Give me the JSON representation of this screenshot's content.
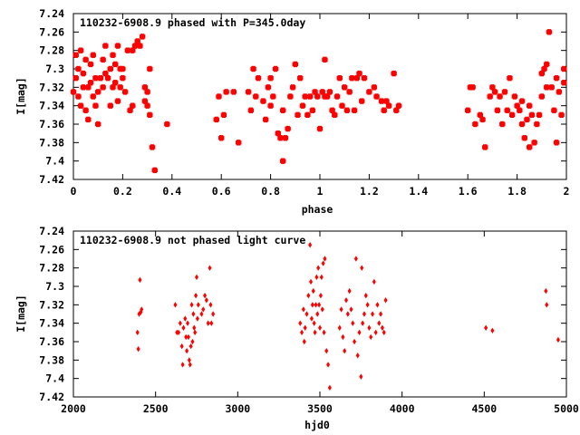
{
  "chart_data": [
    {
      "type": "scatter",
      "title": "110232-6908.9 phased with P=345.0day",
      "xlabel": "phase",
      "ylabel": "I[mag]",
      "xlim": [
        0,
        2
      ],
      "ylim": [
        7.24,
        7.42
      ],
      "y_inverted": true,
      "grid": false,
      "xticks": [
        "0",
        "0.2",
        "0.4",
        "0.6",
        "0.8",
        "1",
        "1.2",
        "1.4",
        "1.6",
        "1.8",
        "2"
      ],
      "yticks": [
        "7.24",
        "7.26",
        "7.28",
        "7.3",
        "7.32",
        "7.34",
        "7.36",
        "7.38",
        "7.4",
        "7.42"
      ],
      "marker": "filled-star",
      "color": "#ff0000",
      "points": [
        [
          0.0,
          7.325
        ],
        [
          0.01,
          7.31
        ],
        [
          0.01,
          7.285
        ],
        [
          0.02,
          7.33
        ],
        [
          0.02,
          7.3
        ],
        [
          0.03,
          7.28
        ],
        [
          0.03,
          7.34
        ],
        [
          0.04,
          7.32
        ],
        [
          0.04,
          7.305
        ],
        [
          0.05,
          7.345
        ],
        [
          0.05,
          7.29
        ],
        [
          0.06,
          7.32
        ],
        [
          0.06,
          7.355
        ],
        [
          0.07,
          7.315
        ],
        [
          0.07,
          7.295
        ],
        [
          0.08,
          7.285
        ],
        [
          0.08,
          7.33
        ],
        [
          0.09,
          7.31
        ],
        [
          0.09,
          7.34
        ],
        [
          0.1,
          7.325
        ],
        [
          0.1,
          7.36
        ],
        [
          0.11,
          7.31
        ],
        [
          0.12,
          7.29
        ],
        [
          0.12,
          7.32
        ],
        [
          0.13,
          7.275
        ],
        [
          0.13,
          7.305
        ],
        [
          0.14,
          7.31
        ],
        [
          0.15,
          7.3
        ],
        [
          0.15,
          7.34
        ],
        [
          0.16,
          7.285
        ],
        [
          0.16,
          7.32
        ],
        [
          0.17,
          7.315
        ],
        [
          0.17,
          7.295
        ],
        [
          0.18,
          7.275
        ],
        [
          0.18,
          7.335
        ],
        [
          0.19,
          7.3
        ],
        [
          0.19,
          7.32
        ],
        [
          0.2,
          7.3
        ],
        [
          0.2,
          7.31
        ],
        [
          0.21,
          7.325
        ],
        [
          0.22,
          7.28
        ],
        [
          0.23,
          7.345
        ],
        [
          0.24,
          7.28
        ],
        [
          0.24,
          7.34
        ],
        [
          0.25,
          7.275
        ],
        [
          0.26,
          7.27
        ],
        [
          0.27,
          7.275
        ],
        [
          0.28,
          7.265
        ],
        [
          0.29,
          7.32
        ],
        [
          0.29,
          7.335
        ],
        [
          0.3,
          7.325
        ],
        [
          0.3,
          7.34
        ],
        [
          0.31,
          7.3
        ],
        [
          0.31,
          7.35
        ],
        [
          0.32,
          7.385
        ],
        [
          0.33,
          7.41
        ],
        [
          0.38,
          7.36
        ],
        [
          0.58,
          7.355
        ],
        [
          0.59,
          7.33
        ],
        [
          0.6,
          7.375
        ],
        [
          0.61,
          7.35
        ],
        [
          0.62,
          7.325
        ],
        [
          0.65,
          7.325
        ],
        [
          0.67,
          7.38
        ],
        [
          0.71,
          7.325
        ],
        [
          0.72,
          7.345
        ],
        [
          0.73,
          7.3
        ],
        [
          0.74,
          7.33
        ],
        [
          0.75,
          7.31
        ],
        [
          0.77,
          7.335
        ],
        [
          0.78,
          7.355
        ],
        [
          0.79,
          7.32
        ],
        [
          0.8,
          7.31
        ],
        [
          0.8,
          7.34
        ],
        [
          0.81,
          7.33
        ],
        [
          0.82,
          7.3
        ],
        [
          0.83,
          7.37
        ],
        [
          0.84,
          7.375
        ],
        [
          0.85,
          7.4
        ],
        [
          0.85,
          7.345
        ],
        [
          0.86,
          7.375
        ],
        [
          0.87,
          7.365
        ],
        [
          0.88,
          7.33
        ],
        [
          0.89,
          7.32
        ],
        [
          0.9,
          7.295
        ],
        [
          0.91,
          7.35
        ],
        [
          0.92,
          7.31
        ],
        [
          0.93,
          7.34
        ],
        [
          0.94,
          7.33
        ],
        [
          0.95,
          7.35
        ],
        [
          0.96,
          7.33
        ],
        [
          0.97,
          7.345
        ],
        [
          0.98,
          7.325
        ],
        [
          0.99,
          7.33
        ],
        [
          1.0,
          7.365
        ],
        [
          1.01,
          7.325
        ],
        [
          1.02,
          7.33
        ],
        [
          1.02,
          7.29
        ],
        [
          1.03,
          7.33
        ],
        [
          1.04,
          7.325
        ],
        [
          1.05,
          7.345
        ],
        [
          1.06,
          7.35
        ],
        [
          1.07,
          7.33
        ],
        [
          1.08,
          7.31
        ],
        [
          1.09,
          7.34
        ],
        [
          1.1,
          7.32
        ],
        [
          1.11,
          7.345
        ],
        [
          1.12,
          7.325
        ],
        [
          1.13,
          7.31
        ],
        [
          1.14,
          7.345
        ],
        [
          1.15,
          7.31
        ],
        [
          1.16,
          7.305
        ],
        [
          1.17,
          7.335
        ],
        [
          1.18,
          7.31
        ],
        [
          1.2,
          7.325
        ],
        [
          1.22,
          7.32
        ],
        [
          1.23,
          7.33
        ],
        [
          1.25,
          7.335
        ],
        [
          1.26,
          7.345
        ],
        [
          1.27,
          7.335
        ],
        [
          1.28,
          7.34
        ],
        [
          1.3,
          7.305
        ],
        [
          1.31,
          7.345
        ],
        [
          1.32,
          7.34
        ],
        [
          1.6,
          7.345
        ],
        [
          1.61,
          7.32
        ],
        [
          1.62,
          7.32
        ],
        [
          1.63,
          7.36
        ],
        [
          1.65,
          7.35
        ],
        [
          1.66,
          7.355
        ],
        [
          1.67,
          7.385
        ],
        [
          1.69,
          7.33
        ],
        [
          1.7,
          7.32
        ],
        [
          1.71,
          7.325
        ],
        [
          1.72,
          7.345
        ],
        [
          1.73,
          7.33
        ],
        [
          1.74,
          7.36
        ],
        [
          1.75,
          7.325
        ],
        [
          1.76,
          7.345
        ],
        [
          1.77,
          7.31
        ],
        [
          1.78,
          7.35
        ],
        [
          1.79,
          7.33
        ],
        [
          1.8,
          7.34
        ],
        [
          1.81,
          7.345
        ],
        [
          1.82,
          7.36
        ],
        [
          1.82,
          7.335
        ],
        [
          1.83,
          7.375
        ],
        [
          1.84,
          7.355
        ],
        [
          1.85,
          7.385
        ],
        [
          1.85,
          7.34
        ],
        [
          1.86,
          7.35
        ],
        [
          1.87,
          7.38
        ],
        [
          1.88,
          7.36
        ],
        [
          1.89,
          7.35
        ],
        [
          1.9,
          7.33
        ],
        [
          1.9,
          7.305
        ],
        [
          1.91,
          7.3
        ],
        [
          1.92,
          7.32
        ],
        [
          1.92,
          7.295
        ],
        [
          1.93,
          7.26
        ],
        [
          1.94,
          7.32
        ],
        [
          1.95,
          7.345
        ],
        [
          1.96,
          7.31
        ],
        [
          1.96,
          7.38
        ],
        [
          1.97,
          7.325
        ],
        [
          1.98,
          7.35
        ],
        [
          1.99,
          7.315
        ],
        [
          1.99,
          7.3
        ]
      ]
    },
    {
      "type": "scatter",
      "title": "110232-6908.9 not phased light curve",
      "xlabel": "hjd0",
      "ylabel": "I[mag]",
      "xlim": [
        2000,
        5000
      ],
      "ylim": [
        7.24,
        7.42
      ],
      "y_inverted": true,
      "grid": false,
      "xticks": [
        "2000",
        "2500",
        "3000",
        "3500",
        "4000",
        "4500",
        "5000"
      ],
      "yticks": [
        "7.24",
        "7.26",
        "7.28",
        "7.3",
        "7.32",
        "7.34",
        "7.36",
        "7.38",
        "7.4",
        "7.42"
      ],
      "marker": "diamond",
      "color": "#ff0000",
      "points": [
        [
          2390,
          7.35
        ],
        [
          2395,
          7.368
        ],
        [
          2400,
          7.33
        ],
        [
          2405,
          7.293
        ],
        [
          2410,
          7.328
        ],
        [
          2415,
          7.325
        ],
        [
          2620,
          7.32
        ],
        [
          2630,
          7.35
        ],
        [
          2640,
          7.35
        ],
        [
          2650,
          7.34
        ],
        [
          2660,
          7.365
        ],
        [
          2665,
          7.385
        ],
        [
          2670,
          7.345
        ],
        [
          2680,
          7.335
        ],
        [
          2685,
          7.355
        ],
        [
          2690,
          7.37
        ],
        [
          2695,
          7.34
        ],
        [
          2700,
          7.355
        ],
        [
          2705,
          7.38
        ],
        [
          2710,
          7.385
        ],
        [
          2715,
          7.365
        ],
        [
          2720,
          7.32
        ],
        [
          2725,
          7.36
        ],
        [
          2730,
          7.33
        ],
        [
          2735,
          7.345
        ],
        [
          2740,
          7.35
        ],
        [
          2745,
          7.31
        ],
        [
          2750,
          7.29
        ],
        [
          2755,
          7.335
        ],
        [
          2760,
          7.32
        ],
        [
          2780,
          7.33
        ],
        [
          2790,
          7.325
        ],
        [
          2800,
          7.31
        ],
        [
          2810,
          7.315
        ],
        [
          2820,
          7.34
        ],
        [
          2830,
          7.28
        ],
        [
          2835,
          7.32
        ],
        [
          2840,
          7.34
        ],
        [
          2850,
          7.33
        ],
        [
          3380,
          7.34
        ],
        [
          3390,
          7.35
        ],
        [
          3400,
          7.325
        ],
        [
          3405,
          7.36
        ],
        [
          3410,
          7.345
        ],
        [
          3420,
          7.33
        ],
        [
          3430,
          7.31
        ],
        [
          3440,
          7.255
        ],
        [
          3445,
          7.295
        ],
        [
          3450,
          7.335
        ],
        [
          3455,
          7.32
        ],
        [
          3460,
          7.305
        ],
        [
          3465,
          7.34
        ],
        [
          3470,
          7.35
        ],
        [
          3475,
          7.32
        ],
        [
          3480,
          7.29
        ],
        [
          3485,
          7.33
        ],
        [
          3490,
          7.28
        ],
        [
          3495,
          7.32
        ],
        [
          3500,
          7.345
        ],
        [
          3505,
          7.31
        ],
        [
          3510,
          7.29
        ],
        [
          3515,
          7.325
        ],
        [
          3520,
          7.275
        ],
        [
          3525,
          7.35
        ],
        [
          3530,
          7.27
        ],
        [
          3540,
          7.37
        ],
        [
          3550,
          7.385
        ],
        [
          3560,
          7.41
        ],
        [
          3620,
          7.345
        ],
        [
          3630,
          7.325
        ],
        [
          3640,
          7.355
        ],
        [
          3650,
          7.37
        ],
        [
          3660,
          7.315
        ],
        [
          3670,
          7.33
        ],
        [
          3680,
          7.305
        ],
        [
          3690,
          7.325
        ],
        [
          3700,
          7.34
        ],
        [
          3710,
          7.36
        ],
        [
          3720,
          7.27
        ],
        [
          3730,
          7.375
        ],
        [
          3740,
          7.35
        ],
        [
          3750,
          7.398
        ],
        [
          3755,
          7.28
        ],
        [
          3760,
          7.34
        ],
        [
          3770,
          7.33
        ],
        [
          3780,
          7.31
        ],
        [
          3790,
          7.32
        ],
        [
          3800,
          7.345
        ],
        [
          3810,
          7.355
        ],
        [
          3820,
          7.33
        ],
        [
          3830,
          7.295
        ],
        [
          3840,
          7.35
        ],
        [
          3850,
          7.32
        ],
        [
          3860,
          7.34
        ],
        [
          3870,
          7.33
        ],
        [
          3880,
          7.345
        ],
        [
          3890,
          7.35
        ],
        [
          3900,
          7.315
        ],
        [
          4510,
          7.345
        ],
        [
          4550,
          7.348
        ],
        [
          4875,
          7.305
        ],
        [
          4880,
          7.32
        ],
        [
          4950,
          7.358
        ]
      ]
    }
  ]
}
